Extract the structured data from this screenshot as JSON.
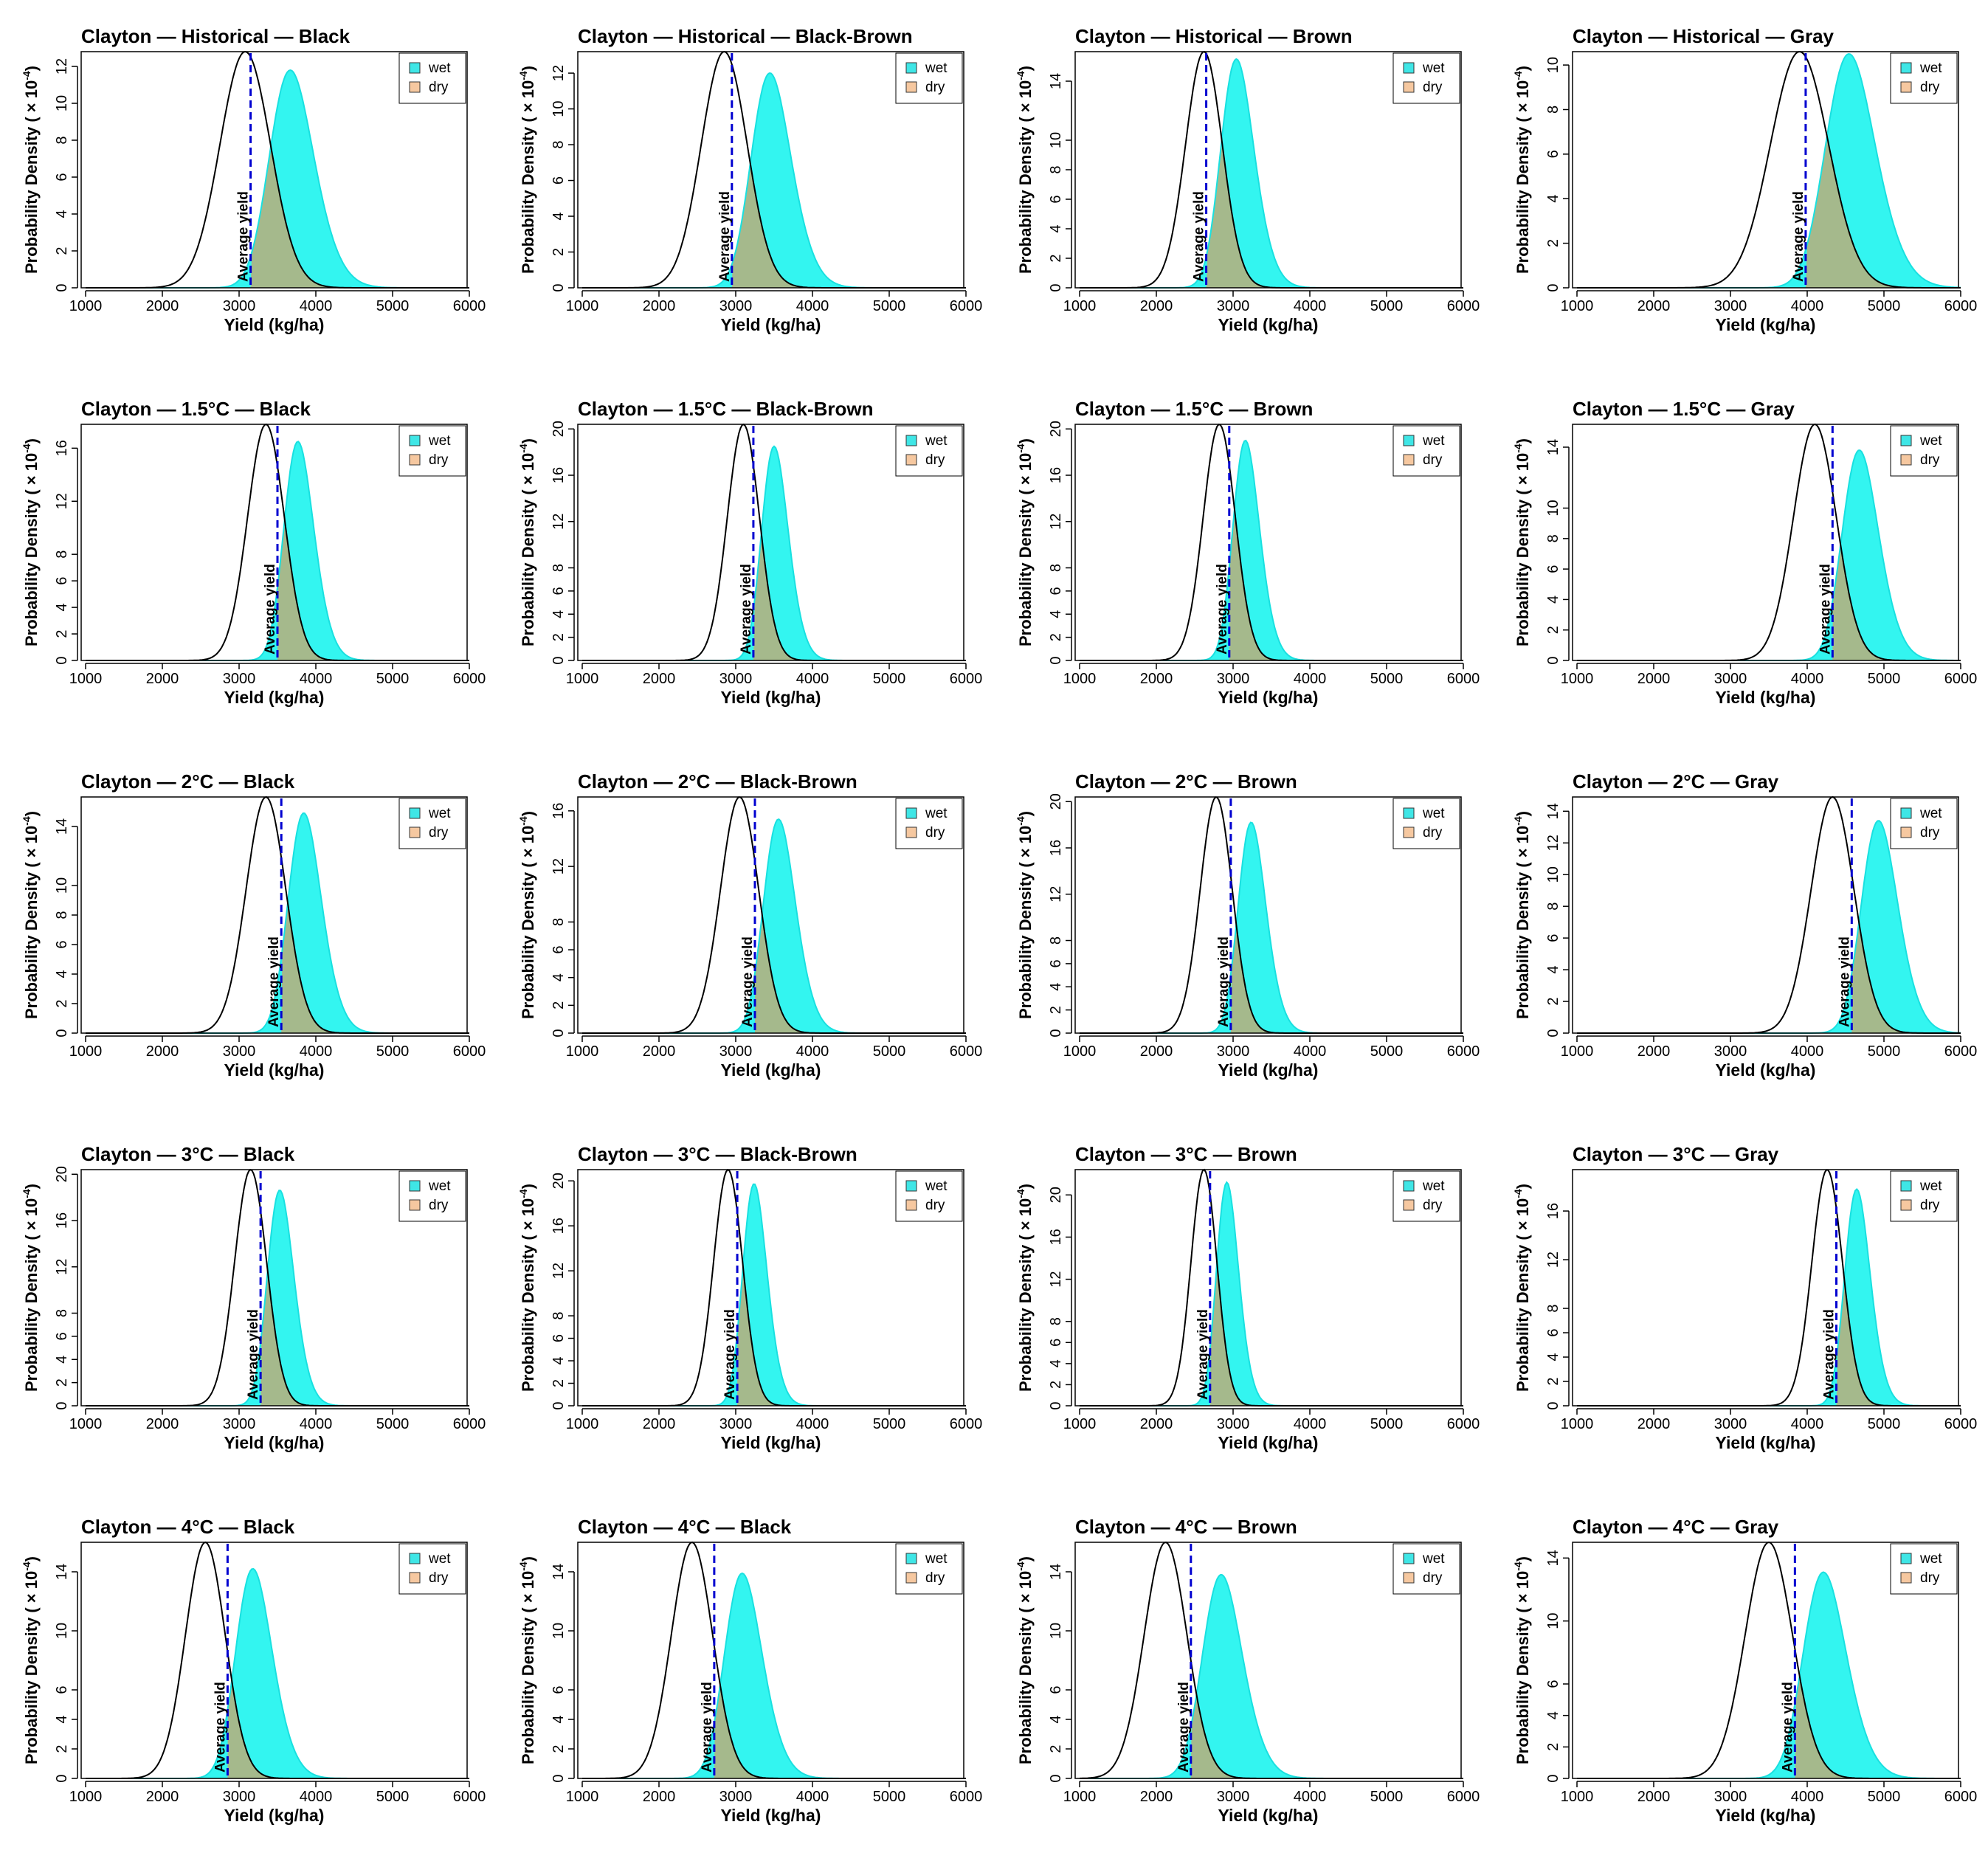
{
  "figure": {
    "common": {
      "xlabel": "Yield (kg/ha)",
      "ylabel": "Probability Density ( × 10",
      "ylabel_exp": "-4",
      "ylabel_close": ")",
      "mean_label": "Average yield",
      "xticks": [
        1000,
        2000,
        3000,
        4000,
        5000,
        6000
      ],
      "xlim": [
        1000,
        6000
      ],
      "legend": [
        "wet",
        "dry"
      ],
      "legend_position": "top-right"
    },
    "colors": {
      "wet_fill": "#33f5f0",
      "wet_line": "#19e0e0",
      "dry_fill": "#a5b98c",
      "dry_line": "#59634d",
      "dry_swatch": "#f6c8a0",
      "wet_swatch": "#3fe6e6",
      "curve": "#000000",
      "mean_line": "#0000d0"
    }
  },
  "chart_data": [
    {
      "type": "area",
      "title": "Clayton — Historical — Black",
      "yticks": [
        0,
        2,
        4,
        6,
        8,
        10,
        12
      ],
      "ylim": [
        0,
        12.8
      ],
      "curve": {
        "mu": 3080,
        "sigma": 330,
        "peak": 12.8
      },
      "wet": {
        "mu": 3450,
        "sigma": 400,
        "skew": 1.5,
        "peak": 11.8
      },
      "mean_yield": 3150
    },
    {
      "type": "area",
      "title": "Clayton — Historical — Black-Brown",
      "yticks": [
        0,
        2,
        4,
        6,
        8,
        10,
        12
      ],
      "ylim": [
        0,
        13.2
      ],
      "curve": {
        "mu": 2850,
        "sigma": 300,
        "peak": 13.2
      },
      "wet": {
        "mu": 3250,
        "sigma": 360,
        "skew": 1.5,
        "peak": 12
      },
      "mean_yield": 2950
    },
    {
      "type": "area",
      "title": "Clayton — Historical — Brown",
      "yticks": [
        0,
        2,
        4,
        6,
        8,
        10,
        14
      ],
      "ylim": [
        0,
        16
      ],
      "curve": {
        "mu": 2620,
        "sigma": 240,
        "peak": 16
      },
      "wet": {
        "mu": 2880,
        "sigma": 300,
        "skew": 1.5,
        "peak": 15.5
      },
      "mean_yield": 2650
    },
    {
      "type": "area",
      "title": "Clayton — Historical — Gray",
      "yticks": [
        0,
        2,
        4,
        6,
        8,
        10
      ],
      "ylim": [
        0,
        10.6
      ],
      "curve": {
        "mu": 3900,
        "sigma": 380,
        "peak": 10.6
      },
      "wet": {
        "mu": 4300,
        "sigma": 450,
        "skew": 1.5,
        "peak": 10.5
      },
      "mean_yield": 3980
    },
    {
      "type": "area",
      "title": "Clayton — 1.5°C — Black",
      "yticks": [
        0,
        2,
        4,
        6,
        8,
        12,
        16
      ],
      "ylim": [
        0,
        17.8
      ],
      "curve": {
        "mu": 3350,
        "sigma": 240,
        "peak": 17.8
      },
      "wet": {
        "mu": 3620,
        "sigma": 270,
        "skew": 1.5,
        "peak": 16.5
      },
      "mean_yield": 3500
    },
    {
      "type": "area",
      "title": "Clayton — 1.5°C — Black-Brown",
      "yticks": [
        0,
        2,
        4,
        6,
        8,
        12,
        16,
        20
      ],
      "ylim": [
        0,
        20.4
      ],
      "curve": {
        "mu": 3100,
        "sigma": 210,
        "peak": 20.4
      },
      "wet": {
        "mu": 3370,
        "sigma": 240,
        "skew": 1.5,
        "peak": 18.5
      },
      "mean_yield": 3230
    },
    {
      "type": "area",
      "title": "Clayton — 1.5°C — Brown",
      "yticks": [
        0,
        2,
        4,
        6,
        8,
        12,
        16,
        20
      ],
      "ylim": [
        0,
        20.4
      ],
      "curve": {
        "mu": 2820,
        "sigma": 210,
        "peak": 20.4
      },
      "wet": {
        "mu": 3030,
        "sigma": 240,
        "skew": 1.5,
        "peak": 19
      },
      "mean_yield": 2950
    },
    {
      "type": "area",
      "title": "Clayton — 1.5°C — Gray",
      "yticks": [
        0,
        2,
        4,
        6,
        8,
        10,
        14
      ],
      "ylim": [
        0,
        15.5
      ],
      "curve": {
        "mu": 4100,
        "sigma": 280,
        "peak": 15.5
      },
      "wet": {
        "mu": 4500,
        "sigma": 330,
        "skew": 1.5,
        "peak": 13.8
      },
      "mean_yield": 4330
    },
    {
      "type": "area",
      "title": "Clayton — 2°C — Black",
      "yticks": [
        0,
        2,
        4,
        6,
        8,
        10,
        14
      ],
      "ylim": [
        0,
        16
      ],
      "curve": {
        "mu": 3350,
        "sigma": 260,
        "peak": 16
      },
      "wet": {
        "mu": 3680,
        "sigma": 300,
        "skew": 1.5,
        "peak": 14.9
      },
      "mean_yield": 3550
    },
    {
      "type": "area",
      "title": "Clayton — 2°C — Black-Brown",
      "yticks": [
        0,
        2,
        4,
        6,
        8,
        12,
        16
      ],
      "ylim": [
        0,
        17
      ],
      "curve": {
        "mu": 3050,
        "sigma": 250,
        "peak": 17
      },
      "wet": {
        "mu": 3400,
        "sigma": 290,
        "skew": 1.5,
        "peak": 15.4
      },
      "mean_yield": 3250
    },
    {
      "type": "area",
      "title": "Clayton — 2°C — Brown",
      "yticks": [
        0,
        2,
        4,
        6,
        8,
        12,
        16,
        20
      ],
      "ylim": [
        0,
        20.4
      ],
      "curve": {
        "mu": 2780,
        "sigma": 210,
        "peak": 20.4
      },
      "wet": {
        "mu": 3100,
        "sigma": 250,
        "skew": 1.5,
        "peak": 18.2
      },
      "mean_yield": 2970
    },
    {
      "type": "area",
      "title": "Clayton — 2°C — Gray",
      "yticks": [
        0,
        2,
        4,
        6,
        8,
        10,
        12,
        14
      ],
      "ylim": [
        0,
        14.9
      ],
      "curve": {
        "mu": 4330,
        "sigma": 280,
        "peak": 14.9
      },
      "wet": {
        "mu": 4750,
        "sigma": 330,
        "skew": 1.5,
        "peak": 13.4
      },
      "mean_yield": 4580
    },
    {
      "type": "area",
      "title": "Clayton — 3°C — Black",
      "yticks": [
        0,
        2,
        4,
        6,
        8,
        12,
        16,
        20
      ],
      "ylim": [
        0,
        20.4
      ],
      "curve": {
        "mu": 3150,
        "sigma": 210,
        "peak": 20.4
      },
      "wet": {
        "mu": 3400,
        "sigma": 240,
        "skew": 1.5,
        "peak": 18.6
      },
      "mean_yield": 3280
    },
    {
      "type": "area",
      "title": "Clayton — 3°C — Black-Brown",
      "yticks": [
        0,
        2,
        4,
        6,
        8,
        12,
        16,
        20
      ],
      "ylim": [
        0,
        21
      ],
      "curve": {
        "mu": 2900,
        "sigma": 190,
        "peak": 21
      },
      "wet": {
        "mu": 3120,
        "sigma": 220,
        "skew": 1.5,
        "peak": 19.7
      },
      "mean_yield": 3020
    },
    {
      "type": "area",
      "title": "Clayton — 3°C — Brown",
      "yticks": [
        0,
        2,
        4,
        6,
        8,
        12,
        16,
        20
      ],
      "ylim": [
        0,
        22.4
      ],
      "curve": {
        "mu": 2620,
        "sigma": 170,
        "peak": 22.4
      },
      "wet": {
        "mu": 2810,
        "sigma": 200,
        "skew": 1.5,
        "peak": 21.2
      },
      "mean_yield": 2700
    },
    {
      "type": "area",
      "title": "Clayton — 3°C — Gray",
      "yticks": [
        0,
        2,
        4,
        6,
        8,
        12,
        16
      ],
      "ylim": [
        0,
        19.4
      ],
      "curve": {
        "mu": 4260,
        "sigma": 200,
        "peak": 19.4
      },
      "wet": {
        "mu": 4520,
        "sigma": 230,
        "skew": 1.5,
        "peak": 17.8
      },
      "mean_yield": 4380
    },
    {
      "type": "area",
      "title": "Clayton — 4°C — Black",
      "yticks": [
        0,
        2,
        4,
        6,
        10,
        14
      ],
      "ylim": [
        0,
        16
      ],
      "curve": {
        "mu": 2560,
        "sigma": 260,
        "peak": 16
      },
      "wet": {
        "mu": 3000,
        "sigma": 330,
        "skew": 1.5,
        "peak": 14.2
      },
      "mean_yield": 2850
    },
    {
      "type": "area",
      "title": "Clayton — 4°C — Black",
      "yticks": [
        0,
        2,
        4,
        6,
        10,
        14
      ],
      "ylim": [
        0,
        16
      ],
      "curve": {
        "mu": 2430,
        "sigma": 270,
        "peak": 16
      },
      "wet": {
        "mu": 2900,
        "sigma": 340,
        "skew": 1.5,
        "peak": 13.9
      },
      "mean_yield": 2720
    },
    {
      "type": "area",
      "title": "Clayton — 4°C — Brown",
      "yticks": [
        0,
        2,
        4,
        6,
        10,
        14
      ],
      "ylim": [
        0,
        16
      ],
      "curve": {
        "mu": 2120,
        "sigma": 280,
        "peak": 16
      },
      "wet": {
        "mu": 2650,
        "sigma": 360,
        "skew": 1.5,
        "peak": 13.8
      },
      "mean_yield": 2450
    },
    {
      "type": "area",
      "title": "Clayton — 4°C — Gray",
      "yticks": [
        0,
        2,
        4,
        6,
        10,
        14
      ],
      "ylim": [
        0,
        15
      ],
      "curve": {
        "mu": 3500,
        "sigma": 310,
        "peak": 15
      },
      "wet": {
        "mu": 4000,
        "sigma": 390,
        "skew": 1.5,
        "peak": 13.1
      },
      "mean_yield": 3840
    }
  ]
}
